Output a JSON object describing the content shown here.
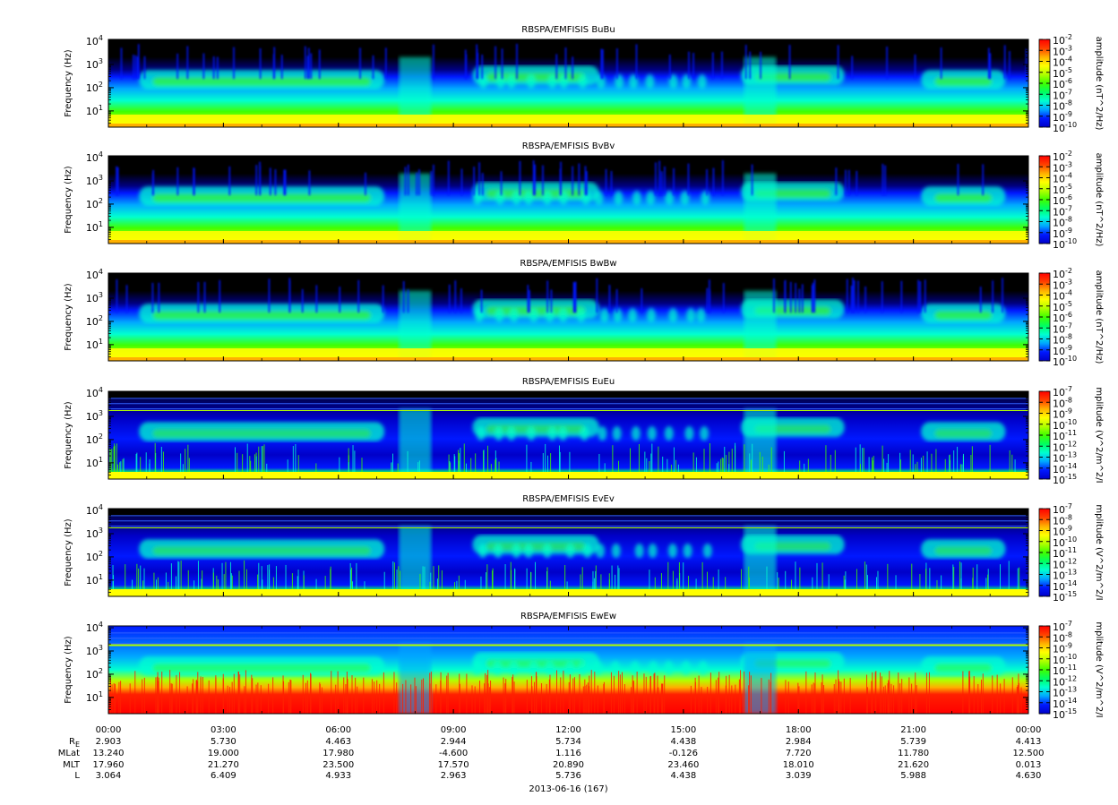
{
  "colors": {
    "background": "#000000",
    "scale": [
      "#0000c8",
      "#0018ff",
      "#00a8ff",
      "#00ffd0",
      "#00ff60",
      "#40ff00",
      "#b0ff00",
      "#ffff00",
      "#ffb000",
      "#ff4000",
      "#ff0000"
    ]
  },
  "chart_data": [
    {
      "type": "heatmap",
      "title": "RBSPA/EMFISIS  BuBu",
      "ylabel": "Frequency (Hz)",
      "yscale": "log",
      "ylim": [
        2,
        12000
      ],
      "yticks": [
        {
          "base": "10",
          "exp": "1"
        },
        {
          "base": "10",
          "exp": "2"
        },
        {
          "base": "10",
          "exp": "3"
        },
        {
          "base": "10",
          "exp": "4"
        }
      ],
      "colorbar_label": "amplitude (nT^2/Hz)",
      "colorbar_ticks": [
        "-2",
        "-3",
        "-4",
        "-5",
        "-6",
        "-7",
        "-8",
        "-9",
        "-10"
      ],
      "colorbar_range": [
        -10,
        -2
      ]
    },
    {
      "type": "heatmap",
      "title": "RBSPA/EMFISIS  BvBv",
      "ylabel": "Frequency (Hz)",
      "yscale": "log",
      "ylim": [
        2,
        12000
      ],
      "yticks": [
        {
          "base": "10",
          "exp": "1"
        },
        {
          "base": "10",
          "exp": "2"
        },
        {
          "base": "10",
          "exp": "3"
        },
        {
          "base": "10",
          "exp": "4"
        }
      ],
      "colorbar_label": "amplitude (nT^2/Hz)",
      "colorbar_ticks": [
        "-2",
        "-3",
        "-4",
        "-5",
        "-6",
        "-7",
        "-8",
        "-9",
        "-10"
      ],
      "colorbar_range": [
        -10,
        -2
      ]
    },
    {
      "type": "heatmap",
      "title": "RBSPA/EMFISIS  BwBw",
      "ylabel": "Frequency (Hz)",
      "yscale": "log",
      "ylim": [
        2,
        12000
      ],
      "yticks": [
        {
          "base": "10",
          "exp": "1"
        },
        {
          "base": "10",
          "exp": "2"
        },
        {
          "base": "10",
          "exp": "3"
        },
        {
          "base": "10",
          "exp": "4"
        }
      ],
      "colorbar_label": "amplitude (nT^2/Hz)",
      "colorbar_ticks": [
        "-2",
        "-3",
        "-4",
        "-5",
        "-6",
        "-7",
        "-8",
        "-9",
        "-10"
      ],
      "colorbar_range": [
        -10,
        -2
      ]
    },
    {
      "type": "heatmap",
      "title": "RBSPA/EMFISIS  EuEu",
      "ylabel": "Frequency (Hz)",
      "yscale": "log",
      "ylim": [
        2,
        12000
      ],
      "yticks": [
        {
          "base": "10",
          "exp": "1"
        },
        {
          "base": "10",
          "exp": "2"
        },
        {
          "base": "10",
          "exp": "3"
        },
        {
          "base": "10",
          "exp": "4"
        }
      ],
      "colorbar_label": "mplitude (V^2/m^2/I",
      "colorbar_ticks": [
        "-7",
        "-8",
        "-9",
        "-10",
        "-11",
        "-12",
        "-13",
        "-14",
        "-15"
      ],
      "colorbar_range": [
        -15,
        -7
      ]
    },
    {
      "type": "heatmap",
      "title": "RBSPA/EMFISIS  EvEv",
      "ylabel": "Frequency (Hz)",
      "yscale": "log",
      "ylim": [
        2,
        12000
      ],
      "yticks": [
        {
          "base": "10",
          "exp": "1"
        },
        {
          "base": "10",
          "exp": "2"
        },
        {
          "base": "10",
          "exp": "3"
        },
        {
          "base": "10",
          "exp": "4"
        }
      ],
      "colorbar_label": "mplitude (V^2/m^2/I",
      "colorbar_ticks": [
        "-7",
        "-8",
        "-9",
        "-10",
        "-11",
        "-12",
        "-13",
        "-14",
        "-15"
      ],
      "colorbar_range": [
        -15,
        -7
      ]
    },
    {
      "type": "heatmap",
      "title": "RBSPA/EMFISIS  EwEw",
      "ylabel": "Frequency (Hz)",
      "yscale": "log",
      "ylim": [
        2,
        12000
      ],
      "yticks": [
        {
          "base": "10",
          "exp": "1"
        },
        {
          "base": "10",
          "exp": "2"
        },
        {
          "base": "10",
          "exp": "3"
        },
        {
          "base": "10",
          "exp": "4"
        }
      ],
      "colorbar_label": "mplitude (V^2/m^2/I",
      "colorbar_ticks": [
        "-7",
        "-8",
        "-9",
        "-10",
        "-11",
        "-12",
        "-13",
        "-14",
        "-15"
      ],
      "colorbar_range": [
        -15,
        -7
      ]
    }
  ],
  "x_axis": {
    "range_hours": [
      0,
      24
    ],
    "tick_hours": [
      0,
      3,
      6,
      9,
      12,
      15,
      18,
      21,
      24
    ],
    "tick_labels": [
      "00:00",
      "03:00",
      "06:00",
      "09:00",
      "12:00",
      "15:00",
      "18:00",
      "21:00",
      "00:00"
    ],
    "date_label": "2013-06-16 (167)",
    "ephemeris": [
      {
        "label": "R",
        "sub": "E",
        "values": [
          "2.903",
          "5.730",
          "4.463",
          "2.944",
          "5.734",
          "4.438",
          "2.984",
          "5.739",
          "4.413"
        ]
      },
      {
        "label": "MLat",
        "values": [
          "13.240",
          "19.000",
          "17.980",
          "-4.600",
          "1.116",
          "-0.126",
          "7.720",
          "11.780",
          "12.500"
        ]
      },
      {
        "label": "MLT",
        "values": [
          "17.960",
          "21.270",
          "23.500",
          "17.570",
          "20.890",
          "23.460",
          "18.010",
          "21.620",
          "0.013"
        ]
      },
      {
        "label": "L",
        "values": [
          "3.064",
          "6.409",
          "4.933",
          "2.963",
          "5.736",
          "4.438",
          "3.039",
          "5.988",
          "4.630"
        ]
      }
    ]
  }
}
